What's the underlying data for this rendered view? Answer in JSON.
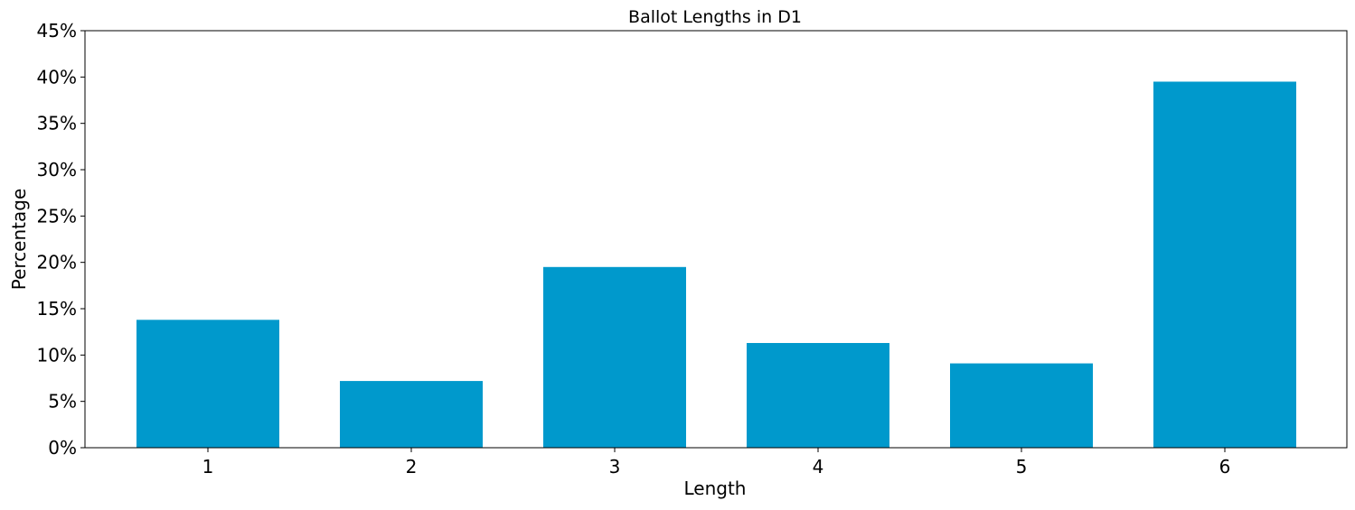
{
  "chart_data": {
    "type": "bar",
    "title": "Ballot Lengths in D1",
    "xlabel": "Length",
    "ylabel": "Percentage",
    "categories": [
      "1",
      "2",
      "3",
      "4",
      "5",
      "6"
    ],
    "values": [
      13.8,
      7.2,
      19.5,
      11.3,
      9.1,
      39.5
    ],
    "value_unit": "%",
    "ylim": [
      0,
      45
    ],
    "yticks": [
      0,
      5,
      10,
      15,
      20,
      25,
      30,
      35,
      40,
      45
    ],
    "ytick_labels": [
      "0%",
      "5%",
      "10%",
      "15%",
      "20%",
      "25%",
      "30%",
      "35%",
      "40%",
      "45%"
    ],
    "grid": false,
    "legend": "none",
    "bar_color": "#0099cc"
  }
}
